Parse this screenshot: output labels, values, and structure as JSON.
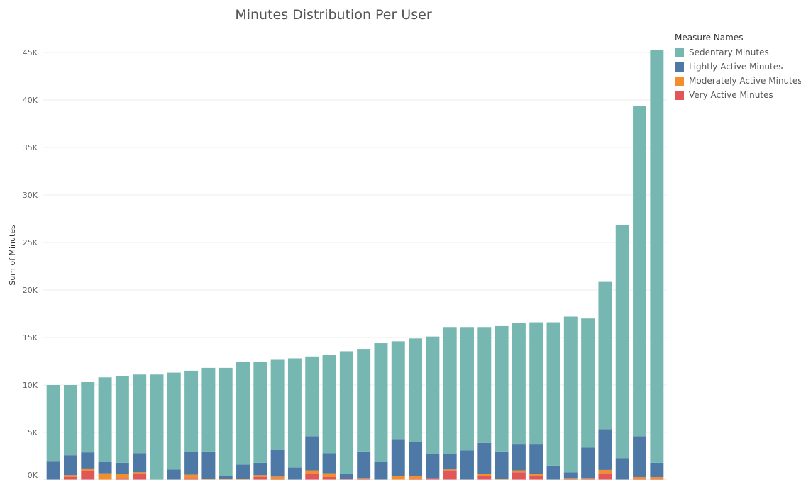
{
  "chart_data": {
    "type": "bar",
    "stacked": true,
    "title": "Minutes Distribution Per User",
    "ylabel": "Sum of Minutes",
    "xlabel": "",
    "ylim": [
      0,
      45000
    ],
    "yticks": [
      {
        "value": 0,
        "label": "0K"
      },
      {
        "value": 5000,
        "label": "5K"
      },
      {
        "value": 10000,
        "label": "10K"
      },
      {
        "value": 15000,
        "label": "15K"
      },
      {
        "value": 20000,
        "label": "20K"
      },
      {
        "value": 25000,
        "label": "25K"
      },
      {
        "value": 30000,
        "label": "30K"
      },
      {
        "value": 35000,
        "label": "35K"
      },
      {
        "value": 40000,
        "label": "40K"
      },
      {
        "value": 45000,
        "label": "45K"
      }
    ],
    "grid": true,
    "legend_title": "Measure Names",
    "legend_position": "top-right",
    "series": [
      {
        "name": "Very Active Minutes",
        "color": "#e15759",
        "values": [
          0,
          300,
          900,
          0,
          200,
          600,
          0,
          0,
          200,
          0,
          0,
          0,
          300,
          150,
          0,
          600,
          300,
          100,
          100,
          0,
          0,
          150,
          200,
          1000,
          0,
          400,
          0,
          800,
          400,
          0,
          100,
          100,
          700,
          0,
          100,
          100
        ]
      },
      {
        "name": "Moderately Active Minutes",
        "color": "#f28e2b",
        "values": [
          0,
          200,
          300,
          700,
          400,
          200,
          0,
          0,
          350,
          100,
          100,
          100,
          200,
          200,
          0,
          400,
          400,
          50,
          100,
          0,
          400,
          250,
          0,
          100,
          0,
          200,
          100,
          200,
          200,
          0,
          100,
          100,
          350,
          0,
          200,
          200
        ]
      },
      {
        "name": "Lightly Active Minutes",
        "color": "#4e79a7",
        "values": [
          2000,
          2100,
          1700,
          1200,
          1200,
          2000,
          0,
          1100,
          2400,
          2900,
          300,
          1500,
          1300,
          2800,
          1300,
          3600,
          2100,
          500,
          2800,
          1900,
          3900,
          3600,
          2500,
          1600,
          3100,
          3300,
          2900,
          2800,
          3200,
          1500,
          600,
          3200,
          4300,
          2300,
          4300,
          1500
        ]
      },
      {
        "name": "Sedentary Minutes",
        "color": "#76b7b2",
        "values": [
          8000,
          7400,
          7400,
          8900,
          9100,
          8300,
          11100,
          10200,
          8550,
          8800,
          11400,
          10800,
          10600,
          9500,
          11500,
          8400,
          10400,
          12900,
          10800,
          12500,
          10300,
          10900,
          12400,
          13400,
          13000,
          12200,
          13200,
          12700,
          12800,
          15100,
          16400,
          13600,
          15500,
          24500,
          34800,
          43500
        ]
      }
    ]
  }
}
